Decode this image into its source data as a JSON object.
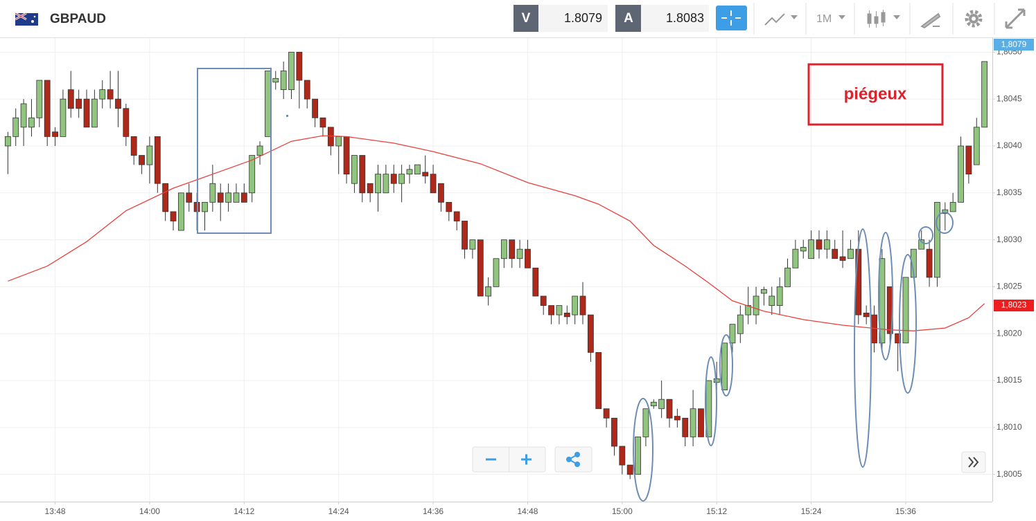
{
  "header": {
    "symbol": "GBPAUD",
    "bid_label": "V",
    "bid": 1.8079,
    "ask_label": "A",
    "ask": 1.8083,
    "timeframe": "1M"
  },
  "chart_data": {
    "type": "candlestick",
    "annotation": "piégeux",
    "current_price_label": "1,8079",
    "ylim": [
      1.80021,
      1.80515
    ],
    "yticks": [
      {
        "value": 1.8005,
        "label": "1,8005"
      },
      {
        "value": 1.801,
        "label": "1,8010"
      },
      {
        "value": 1.8015,
        "label": "1,8015"
      },
      {
        "value": 1.802,
        "label": "1,8020"
      },
      {
        "value": 1.8025,
        "label": "1,8025"
      },
      {
        "value": 1.803,
        "label": "1,8030"
      },
      {
        "value": 1.8035,
        "label": "1,8035"
      },
      {
        "value": 1.804,
        "label": "1,8040"
      },
      {
        "value": 1.8045,
        "label": "1,8045"
      },
      {
        "value": 1.805,
        "label": "1,8050"
      }
    ],
    "xlim": [
      "13:41",
      "15:47"
    ],
    "xticks": [
      "13:48",
      "14:00",
      "14:12",
      "14:24",
      "14:36",
      "14:48",
      "15:00",
      "15:12",
      "15:24",
      "15:36"
    ],
    "grid": true,
    "up_color": "#90c47f",
    "down_color": "#b0281a",
    "x": [
      "13:42",
      "13:43",
      "13:44",
      "13:45",
      "13:46",
      "13:47",
      "13:48",
      "13:49",
      "13:50",
      "13:51",
      "13:52",
      "13:53",
      "13:54",
      "13:55",
      "13:56",
      "13:57",
      "13:58",
      "13:59",
      "14:00",
      "14:01",
      "14:02",
      "14:03",
      "14:04",
      "14:05",
      "14:06",
      "14:07",
      "14:08",
      "14:09",
      "14:10",
      "14:11",
      "14:12",
      "14:13",
      "14:14",
      "14:15",
      "14:16",
      "14:17",
      "14:18",
      "14:19",
      "14:20",
      "14:21",
      "14:22",
      "14:23",
      "14:24",
      "14:25",
      "14:26",
      "14:27",
      "14:28",
      "14:29",
      "14:30",
      "14:31",
      "14:32",
      "14:33",
      "14:34",
      "14:35",
      "14:36",
      "14:37",
      "14:38",
      "14:39",
      "14:40",
      "14:41",
      "14:42",
      "14:43",
      "14:44",
      "14:45",
      "14:46",
      "14:47",
      "14:48",
      "14:49",
      "14:50",
      "14:51",
      "14:52",
      "14:53",
      "14:54",
      "14:55",
      "14:56",
      "14:57",
      "14:58",
      "14:59",
      "15:00",
      "15:01",
      "15:02",
      "15:03",
      "15:04",
      "15:05",
      "15:06",
      "15:07",
      "15:08",
      "15:09",
      "15:10",
      "15:11",
      "15:12",
      "15:13",
      "15:14",
      "15:15",
      "15:16",
      "15:17",
      "15:18",
      "15:19",
      "15:20",
      "15:21",
      "15:22",
      "15:23",
      "15:24",
      "15:25",
      "15:26",
      "15:27",
      "15:28",
      "15:29",
      "15:30",
      "15:31",
      "15:32",
      "15:33",
      "15:34",
      "15:35",
      "15:36",
      "15:37",
      "15:38",
      "15:39",
      "15:40",
      "15:41",
      "15:42",
      "15:43",
      "15:44",
      "15:45",
      "15:46"
    ],
    "open": [
      1.804,
      1.8041,
      1.8042,
      1.8042,
      1.8043,
      1.8047,
      1.80415,
      1.8041,
      1.8046,
      1.8045,
      1.8045,
      1.8042,
      1.8045,
      1.8046,
      1.8045,
      1.8044,
      1.8041,
      1.8039,
      1.8038,
      1.8041,
      1.8036,
      1.8033,
      1.8031,
      1.8035,
      1.8034,
      1.8033,
      1.8034,
      1.8035,
      1.8034,
      1.8034,
      1.8035,
      1.8035,
      1.8039,
      1.8041,
      1.80468,
      1.8046,
      1.8046,
      1.805,
      1.8047,
      1.8045,
      1.8043,
      1.8042,
      1.804,
      1.8041,
      1.8036,
      1.8039,
      1.8036,
      1.8035,
      1.8035,
      1.8037,
      1.8036,
      1.8037,
      1.8037,
      1.80372,
      1.8037,
      1.8036,
      1.8034,
      1.8033,
      1.8032,
      1.8029,
      1.803,
      1.8024,
      1.8025,
      1.8028,
      1.803,
      1.8028,
      1.8029,
      1.8027,
      1.8024,
      1.8023,
      1.8022,
      1.80222,
      1.8022,
      1.8024,
      1.8022,
      1.8018,
      1.8012,
      1.8011,
      1.8008,
      1.8006,
      1.8005,
      1.8009,
      1.80123,
      1.8012,
      1.8013,
      1.80112,
      1.8011,
      1.8009,
      1.8012,
      1.8009,
      1.80148,
      1.8014,
      1.8019,
      1.802,
      1.8022,
      1.8022,
      1.80243,
      1.8023,
      1.8023,
      1.8025,
      1.8027,
      1.80288,
      1.8028,
      1.803,
      1.8029,
      1.8029,
      1.80282,
      1.8028,
      1.8029,
      1.80222,
      1.8022,
      1.8019,
      1.8025,
      1.802,
      1.8019,
      1.8026,
      1.8029,
      1.8029,
      1.8026,
      1.80328,
      1.8033,
      1.8034,
      1.804,
      1.8038,
      1.8042
    ],
    "high": [
      1.80415,
      1.8044,
      1.8045,
      1.8045,
      1.8047,
      1.8047,
      1.8042,
      1.8046,
      1.8048,
      1.8046,
      1.8046,
      1.8046,
      1.8047,
      1.8048,
      1.8048,
      1.80445,
      1.8041,
      1.8039,
      1.8041,
      1.8041,
      1.8036,
      1.8033,
      1.8035,
      1.8036,
      1.8035,
      1.8034,
      1.8038,
      1.8036,
      1.8036,
      1.8036,
      1.8036,
      1.8039,
      1.80405,
      1.8048,
      1.8048,
      1.8049,
      1.805,
      1.805,
      1.8047,
      1.8045,
      1.8043,
      1.8042,
      1.8041,
      1.8041,
      1.8039,
      1.8039,
      1.8036,
      1.8038,
      1.8038,
      1.8038,
      1.8038,
      1.8038,
      1.8038,
      1.8039,
      1.8038,
      1.8036,
      1.8034,
      1.8033,
      1.8032,
      1.803,
      1.803,
      1.8026,
      1.8028,
      1.803,
      1.803,
      1.803,
      1.803,
      1.8027,
      1.8024,
      1.8023,
      1.8023,
      1.8023,
      1.8024,
      1.80255,
      1.8022,
      1.8018,
      1.8012,
      1.8011,
      1.8008,
      1.8006,
      1.8009,
      1.8012,
      1.8013,
      1.8015,
      1.8013,
      1.8012,
      1.8011,
      1.8014,
      1.8012,
      1.8015,
      1.8017,
      1.8019,
      1.8021,
      1.8023,
      1.8025,
      1.8025,
      1.8025,
      1.8025,
      1.8026,
      1.8028,
      1.803,
      1.803,
      1.8031,
      1.8031,
      1.8031,
      1.803,
      1.8031,
      1.803,
      1.8031,
      1.8023,
      1.8023,
      1.8029,
      1.8025,
      1.802,
      1.8026,
      1.8029,
      1.8031,
      1.803,
      1.8034,
      1.8034,
      1.8035,
      1.8041,
      1.804,
      1.8043,
      1.8049
    ],
    "low": [
      1.8037,
      1.804,
      1.804,
      1.8041,
      1.8042,
      1.804,
      1.804,
      1.8041,
      1.8043,
      1.8043,
      1.8042,
      1.8042,
      1.8044,
      1.8044,
      1.8042,
      1.804,
      1.8038,
      1.8037,
      1.8036,
      1.8035,
      1.8032,
      1.8031,
      1.8031,
      1.8033,
      1.8031,
      1.8031,
      1.8033,
      1.8032,
      1.8033,
      1.8034,
      1.8034,
      1.8034,
      1.8038,
      1.8041,
      1.8046,
      1.8045,
      1.8045,
      1.8044,
      1.8044,
      1.8042,
      1.8041,
      1.8039,
      1.8037,
      1.8036,
      1.8035,
      1.8034,
      1.8034,
      1.8033,
      1.8035,
      1.8035,
      1.8034,
      1.8036,
      1.8037,
      1.8036,
      1.8035,
      1.8033,
      1.8032,
      1.8031,
      1.8028,
      1.8028,
      1.8024,
      1.8023,
      1.8025,
      1.8027,
      1.8027,
      1.8027,
      1.8027,
      1.8024,
      1.8022,
      1.8021,
      1.8021,
      1.8021,
      1.8021,
      1.8021,
      1.8017,
      1.8012,
      1.801,
      1.8007,
      1.8005,
      1.80045,
      1.8005,
      1.8008,
      1.8012,
      1.8011,
      1.801,
      1.801,
      1.8008,
      1.8008,
      1.8009,
      1.8009,
      1.8014,
      1.8014,
      1.8018,
      1.8019,
      1.8021,
      1.8021,
      1.8023,
      1.8022,
      1.8022,
      1.8025,
      1.8027,
      1.8028,
      1.8028,
      1.8028,
      1.8028,
      1.8028,
      1.8027,
      1.8028,
      1.8021,
      1.8021,
      1.8018,
      1.8018,
      1.8019,
      1.8016,
      1.8019,
      1.8026,
      1.8029,
      1.8025,
      1.8025,
      1.8031,
      1.8033,
      1.8034,
      1.8036,
      1.8038,
      1.8042
    ],
    "close": [
      1.8041,
      1.8043,
      1.80445,
      1.8043,
      1.8047,
      1.8041,
      1.8041,
      1.8045,
      1.8044,
      1.8044,
      1.8042,
      1.8045,
      1.8046,
      1.8045,
      1.8044,
      1.8041,
      1.8039,
      1.8038,
      1.804,
      1.8036,
      1.8033,
      1.8032,
      1.8035,
      1.8034,
      1.8033,
      1.8034,
      1.8036,
      1.8034,
      1.8035,
      1.8035,
      1.8034,
      1.8039,
      1.804,
      1.8048,
      1.80472,
      1.8048,
      1.805,
      1.8047,
      1.8045,
      1.8043,
      1.8042,
      1.804,
      1.8041,
      1.8037,
      1.8039,
      1.8035,
      1.8035,
      1.8037,
      1.8037,
      1.8036,
      1.8037,
      1.80375,
      1.8038,
      1.80368,
      1.8035,
      1.8034,
      1.8033,
      1.8032,
      1.8029,
      1.803,
      1.8024,
      1.8025,
      1.8028,
      1.803,
      1.8028,
      1.8029,
      1.8027,
      1.8024,
      1.8023,
      1.8022,
      1.8023,
      1.80218,
      1.8024,
      1.8022,
      1.8018,
      1.8012,
      1.8011,
      1.8008,
      1.8006,
      1.8005,
      1.8009,
      1.8012,
      1.80127,
      1.8013,
      1.8011,
      1.80108,
      1.8009,
      1.8012,
      1.8009,
      1.8015,
      1.80152,
      1.8019,
      1.8021,
      1.8022,
      1.8023,
      1.8024,
      1.80247,
      1.8024,
      1.8025,
      1.8027,
      1.8029,
      1.80292,
      1.803,
      1.8029,
      1.803,
      1.8028,
      1.80278,
      1.8029,
      1.8022,
      1.80218,
      1.8019,
      1.8028,
      1.802,
      1.8019,
      1.8026,
      1.8029,
      1.803,
      1.8026,
      1.8034,
      1.80332,
      1.8034,
      1.804,
      1.8037,
      1.8042,
      1.8049
    ],
    "ma": {
      "color": "#e8413b",
      "x": [
        "13:42",
        "13:47",
        "13:52",
        "13:57",
        "14:03",
        "14:08",
        "14:13",
        "14:18",
        "14:22",
        "14:25",
        "14:31",
        "14:36",
        "14:42",
        "14:48",
        "14:54",
        "14:57",
        "15:01",
        "15:04",
        "15:08",
        "15:11",
        "15:14",
        "15:18",
        "15:23",
        "15:28",
        "15:34",
        "15:37",
        "15:41",
        "15:44",
        "15:46"
      ],
      "values": [
        1.80256,
        1.80272,
        1.80298,
        1.80331,
        1.80355,
        1.8037,
        1.80385,
        1.80405,
        1.80411,
        1.8041,
        1.80403,
        1.80394,
        1.80381,
        1.80361,
        1.80347,
        1.80338,
        1.8032,
        1.80294,
        1.80272,
        1.80254,
        1.80235,
        1.80224,
        1.80215,
        1.80209,
        1.80204,
        1.80203,
        1.80206,
        1.80217,
        1.80232
      ],
      "label": {
        "value": 1.8023,
        "label": "1,8023"
      }
    }
  }
}
